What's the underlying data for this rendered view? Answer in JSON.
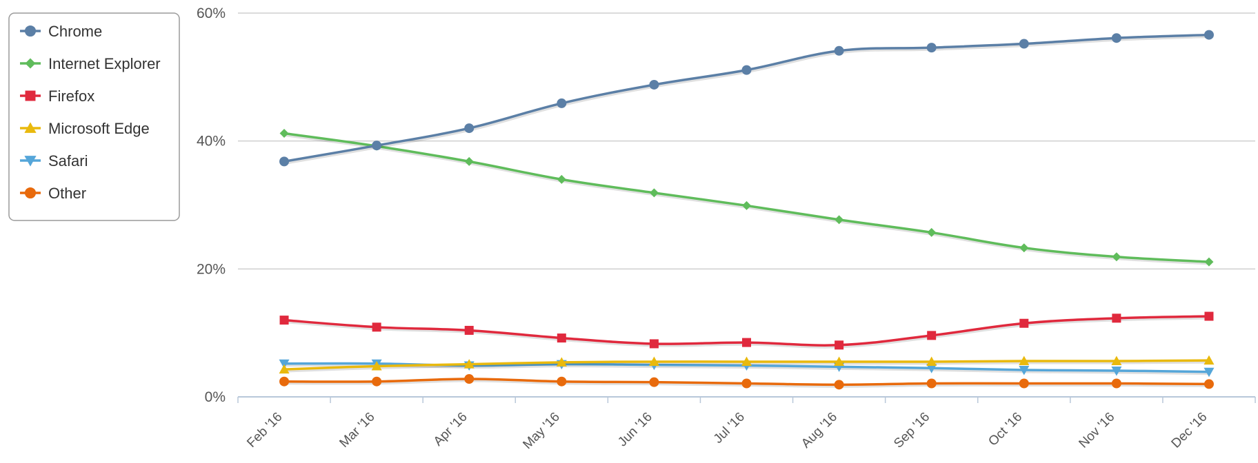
{
  "chart_data": {
    "type": "line",
    "categories": [
      "Feb '16",
      "Mar '16",
      "Apr '16",
      "May '16",
      "Jun '16",
      "Jul '16",
      "Aug '16",
      "Sep '16",
      "Oct '16",
      "Nov '16",
      "Dec '16"
    ],
    "y_ticks": [
      "0%",
      "20%",
      "40%",
      "60%"
    ],
    "ylim": [
      0,
      60
    ],
    "grid": true,
    "legend_position": "top-left",
    "series": [
      {
        "name": "Chrome",
        "color": "#5b7fa6",
        "marker": "circle",
        "values": [
          36.8,
          39.3,
          42.0,
          45.9,
          48.8,
          51.1,
          54.1,
          54.6,
          55.2,
          56.1,
          56.6
        ]
      },
      {
        "name": "Internet Explorer",
        "color": "#5fbc5b",
        "marker": "diamond",
        "values": [
          41.2,
          39.2,
          36.8,
          34.0,
          31.9,
          29.9,
          27.7,
          25.7,
          23.3,
          21.9,
          21.1
        ]
      },
      {
        "name": "Firefox",
        "color": "#e0293d",
        "marker": "square",
        "values": [
          12.0,
          10.9,
          10.4,
          9.2,
          8.3,
          8.5,
          8.1,
          9.6,
          11.5,
          12.3,
          12.6
        ]
      },
      {
        "name": "Microsoft Edge",
        "color": "#e9b90d",
        "marker": "triangle-up",
        "values": [
          4.3,
          4.8,
          5.1,
          5.4,
          5.5,
          5.5,
          5.5,
          5.5,
          5.6,
          5.6,
          5.7
        ]
      },
      {
        "name": "Safari",
        "color": "#55a6d9",
        "marker": "triangle-down",
        "values": [
          5.2,
          5.2,
          4.9,
          5.1,
          5.0,
          4.9,
          4.7,
          4.5,
          4.2,
          4.1,
          3.9
        ]
      },
      {
        "name": "Other",
        "color": "#e86a0c",
        "marker": "circle",
        "values": [
          2.4,
          2.4,
          2.8,
          2.4,
          2.3,
          2.1,
          1.9,
          2.1,
          2.1,
          2.1,
          2.0
        ]
      }
    ]
  }
}
